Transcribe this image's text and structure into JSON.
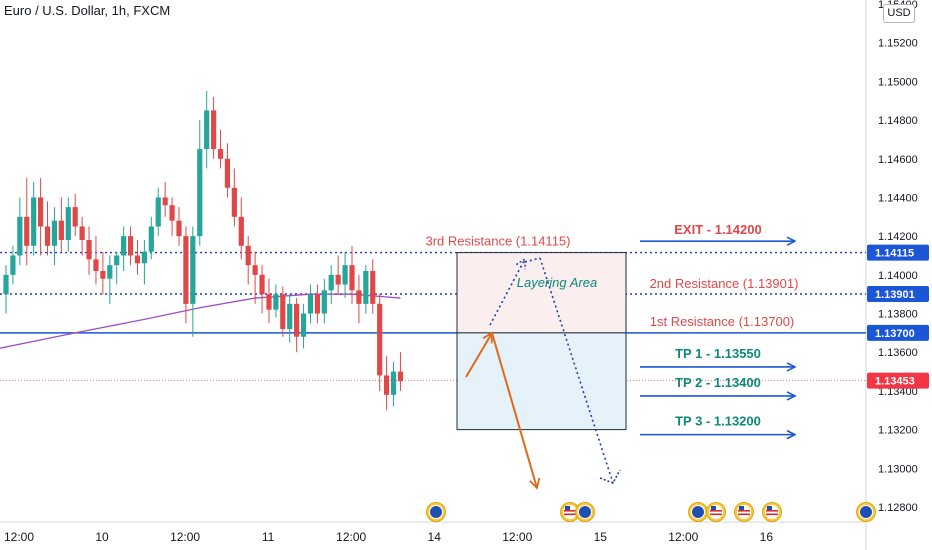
{
  "header": {
    "title": "Euro / U.S. Dollar, 1h, FXCM",
    "currency": "USD"
  },
  "colors": {
    "bull": "#26a69a",
    "bear": "#e04848",
    "support_blue": "#1a56d6",
    "dotted_blue": "#1a3fb0",
    "resistance_red": "#e04848",
    "tp_teal": "#0d8a7a",
    "ma": "#a04dc8",
    "arrow_orange": "#e06a1a",
    "last_price_bg": "#f23645"
  },
  "chart_data": {
    "type": "candlestick",
    "symbol": "Euro / U.S. Dollar",
    "timeframe": "1h",
    "source": "FXCM",
    "y_ticks": [
      "1.15400",
      "1.15200",
      "1.15000",
      "1.14800",
      "1.14600",
      "1.14400",
      "1.14200",
      "1.14000",
      "1.13800",
      "1.13600",
      "1.13400",
      "1.13200",
      "1.13000",
      "1.12800"
    ],
    "ylim": [
      1.1275,
      1.1545
    ],
    "x_ticks": [
      {
        "label": "12:00",
        "bar": 0
      },
      {
        "label": "10",
        "bar": 12
      },
      {
        "label": "12:00",
        "bar": 24
      },
      {
        "label": "11",
        "bar": 36
      },
      {
        "label": "12:00",
        "bar": 48
      },
      {
        "label": "14",
        "bar": 60
      },
      {
        "label": "12:00",
        "bar": 72
      },
      {
        "label": "15",
        "bar": 84
      },
      {
        "label": "12:00",
        "bar": 96
      },
      {
        "label": "16",
        "bar": 108
      }
    ],
    "candles": [
      [
        1.139,
        1.1405,
        1.138,
        1.14
      ],
      [
        1.14,
        1.1415,
        1.1395,
        1.141
      ],
      [
        1.141,
        1.144,
        1.1405,
        1.143
      ],
      [
        1.143,
        1.145,
        1.1405,
        1.1415
      ],
      [
        1.1415,
        1.1448,
        1.141,
        1.144
      ],
      [
        1.144,
        1.145,
        1.141,
        1.1425
      ],
      [
        1.1425,
        1.1438,
        1.141,
        1.1415
      ],
      [
        1.1415,
        1.1435,
        1.1405,
        1.1428
      ],
      [
        1.1428,
        1.144,
        1.1412,
        1.1418
      ],
      [
        1.1418,
        1.144,
        1.1412,
        1.1435
      ],
      [
        1.1435,
        1.1442,
        1.142,
        1.1425
      ],
      [
        1.1425,
        1.143,
        1.141,
        1.1418
      ],
      [
        1.1418,
        1.1425,
        1.14,
        1.1408
      ],
      [
        1.1408,
        1.142,
        1.1395,
        1.1402
      ],
      [
        1.1402,
        1.1412,
        1.139,
        1.1398
      ],
      [
        1.1398,
        1.141,
        1.1385,
        1.1405
      ],
      [
        1.1405,
        1.1412,
        1.1395,
        1.141
      ],
      [
        1.141,
        1.1425,
        1.1402,
        1.142
      ],
      [
        1.142,
        1.1425,
        1.1405,
        1.141
      ],
      [
        1.141,
        1.1418,
        1.14,
        1.1406
      ],
      [
        1.1406,
        1.1418,
        1.1395,
        1.1412
      ],
      [
        1.1412,
        1.143,
        1.1408,
        1.1425
      ],
      [
        1.1425,
        1.1445,
        1.142,
        1.144
      ],
      [
        1.144,
        1.1448,
        1.143,
        1.1436
      ],
      [
        1.1436,
        1.144,
        1.142,
        1.1428
      ],
      [
        1.1428,
        1.1435,
        1.1415,
        1.142
      ],
      [
        1.142,
        1.1425,
        1.1375,
        1.1385
      ],
      [
        1.1385,
        1.1425,
        1.1368,
        1.142
      ],
      [
        1.142,
        1.148,
        1.1415,
        1.1465
      ],
      [
        1.1465,
        1.1495,
        1.1455,
        1.1485
      ],
      [
        1.1485,
        1.1492,
        1.146,
        1.1465
      ],
      [
        1.1465,
        1.1475,
        1.1455,
        1.146
      ],
      [
        1.146,
        1.1468,
        1.144,
        1.1445
      ],
      [
        1.1445,
        1.1455,
        1.1425,
        1.143
      ],
      [
        1.143,
        1.144,
        1.1408,
        1.1415
      ],
      [
        1.1415,
        1.142,
        1.1395,
        1.1405
      ],
      [
        1.1405,
        1.1412,
        1.1385,
        1.14
      ],
      [
        1.14,
        1.1405,
        1.138,
        1.139
      ],
      [
        1.139,
        1.1398,
        1.1375,
        1.1382
      ],
      [
        1.1382,
        1.1395,
        1.1378,
        1.139
      ],
      [
        1.139,
        1.1394,
        1.1368,
        1.1372
      ],
      [
        1.1372,
        1.139,
        1.1365,
        1.1385
      ],
      [
        1.1385,
        1.1388,
        1.136,
        1.1368
      ],
      [
        1.1368,
        1.1385,
        1.1362,
        1.138
      ],
      [
        1.138,
        1.1395,
        1.1375,
        1.139
      ],
      [
        1.139,
        1.1395,
        1.1375,
        1.138
      ],
      [
        1.138,
        1.1398,
        1.1375,
        1.1392
      ],
      [
        1.1392,
        1.1405,
        1.1385,
        1.14
      ],
      [
        1.14,
        1.141,
        1.139,
        1.1395
      ],
      [
        1.1395,
        1.1412,
        1.1388,
        1.1405
      ],
      [
        1.1405,
        1.1415,
        1.1385,
        1.1392
      ],
      [
        1.1392,
        1.14,
        1.1375,
        1.1385
      ],
      [
        1.1385,
        1.1405,
        1.138,
        1.1402
      ],
      [
        1.1402,
        1.1408,
        1.138,
        1.1385
      ],
      [
        1.1385,
        1.139,
        1.134,
        1.1348
      ],
      [
        1.1348,
        1.1358,
        1.133,
        1.1338
      ],
      [
        1.1338,
        1.1355,
        1.1332,
        1.135
      ],
      [
        1.135,
        1.136,
        1.134,
        1.1345
      ]
    ],
    "moving_average": [
      {
        "bar": -1,
        "y": 1.1362
      },
      {
        "bar": 10,
        "y": 1.137
      },
      {
        "bar": 20,
        "y": 1.1377
      },
      {
        "bar": 28,
        "y": 1.1383
      },
      {
        "bar": 36,
        "y": 1.1388
      },
      {
        "bar": 44,
        "y": 1.139
      },
      {
        "bar": 50,
        "y": 1.139
      },
      {
        "bar": 57,
        "y": 1.1388
      }
    ],
    "last_price": "1.13453",
    "levels": [
      {
        "name": "exit",
        "label": "EXIT - 1.14200",
        "value": 1.142
      },
      {
        "name": "resistance-3",
        "label": "3rd Resistance (1.14115)",
        "value": 1.14115,
        "axis_label": "1.14115"
      },
      {
        "name": "resistance-2",
        "label": "2nd Resistance (1.13901)",
        "value": 1.13901,
        "axis_label": "1.13901"
      },
      {
        "name": "resistance-1",
        "label": "1st Resistance (1.13700)",
        "value": 1.137,
        "axis_label": "1.13700"
      },
      {
        "name": "tp-1",
        "label": "TP 1 - 1.13550",
        "value": 1.1355
      },
      {
        "name": "tp-2",
        "label": "TP 2 - 1.13400",
        "value": 1.134
      },
      {
        "name": "tp-3",
        "label": "TP 3 - 1.13200",
        "value": 1.132
      }
    ],
    "zone_label": "Layering Area",
    "event_marker_count": 8
  }
}
